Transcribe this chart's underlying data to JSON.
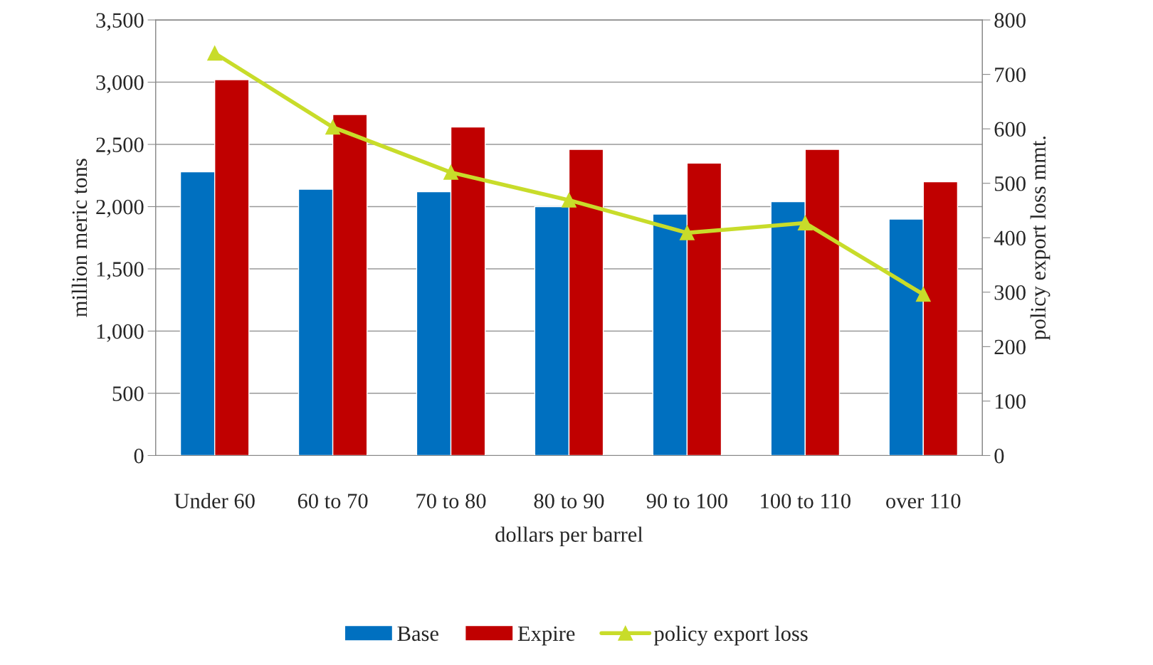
{
  "chart_data": {
    "type": "bar",
    "xlabel": "dollars per barrel",
    "ylabel": "million meric tons",
    "y2label": "policy export loss mmt.",
    "categories": [
      "Under 60",
      "60 to 70",
      "70 to 80",
      "80 to 90",
      "90 to 100",
      "100 to 110",
      "over 110"
    ],
    "series": [
      {
        "name": "Base",
        "color": "#0070c0",
        "values": [
          2280,
          2140,
          2120,
          2000,
          1940,
          2040,
          1900
        ]
      },
      {
        "name": "Expire",
        "color": "#c00000",
        "values": [
          3020,
          2740,
          2640,
          2460,
          2350,
          2460,
          2200
        ]
      },
      {
        "name": "policy export loss",
        "type": "line",
        "axis": "y2",
        "color": "#c8dc2a",
        "marker": "triangle",
        "values": [
          739,
          603,
          520,
          469,
          409,
          427,
          296
        ]
      }
    ],
    "ylim": [
      0,
      3500
    ],
    "yticks": [
      {
        "value": 0,
        "label": "0"
      },
      {
        "value": 500,
        "label": "500"
      },
      {
        "value": 1000,
        "label": "1,000"
      },
      {
        "value": 1500,
        "label": "1,500"
      },
      {
        "value": 2000,
        "label": "2,000"
      },
      {
        "value": 2500,
        "label": "2,500"
      },
      {
        "value": 3000,
        "label": "3,000"
      },
      {
        "value": 3500,
        "label": "3,500"
      }
    ],
    "y2lim": [
      0,
      800
    ],
    "y2ticks": [
      0,
      100,
      200,
      300,
      400,
      500,
      600,
      700,
      800
    ],
    "grid": "y",
    "legend": "bottom"
  }
}
